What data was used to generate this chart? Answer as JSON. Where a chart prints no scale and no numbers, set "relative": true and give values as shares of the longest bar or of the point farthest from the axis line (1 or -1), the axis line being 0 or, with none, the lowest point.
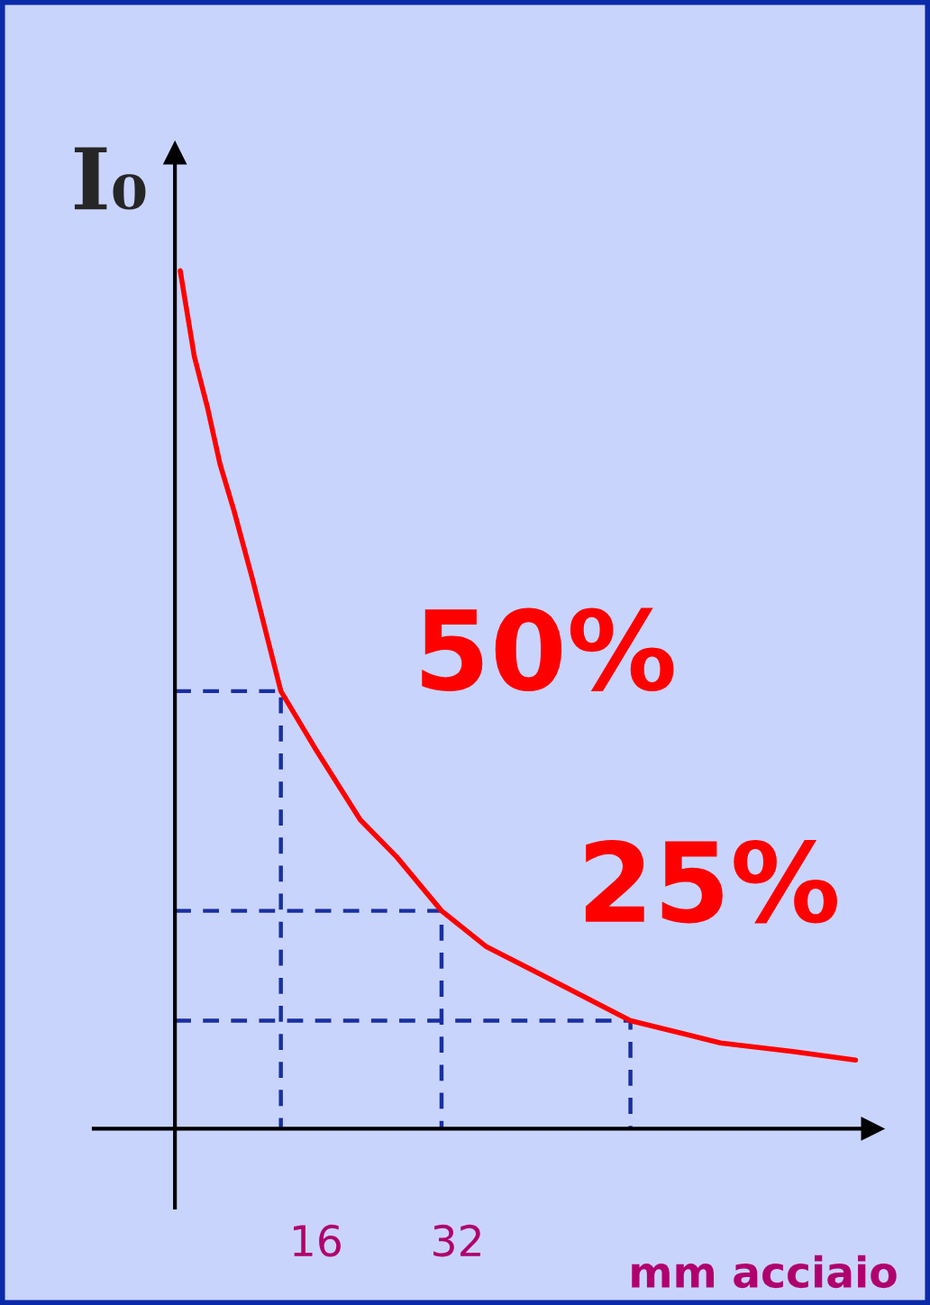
{
  "chart_data": {
    "type": "line",
    "relative": true,
    "xlabel": "mm acciaio",
    "ylabel": "I₀",
    "xlim": [
      -9.2,
      79
    ],
    "xticks": [
      16,
      32
    ],
    "grid": false,
    "legend": false,
    "marker": "none",
    "series": [
      {
        "color": "#ff0000",
        "line_style": "solid",
        "x": [
          0.6,
          2.2,
          3.7,
          5.1,
          6.7,
          8.8,
          12.0,
          15.9,
          21.0,
          25.1,
          30.2,
          35.3,
          41.4,
          46.5,
          51.6,
          61.8,
          70.0,
          77.1
        ],
        "values": [
          1.0,
          0.9,
          0.84,
          0.775,
          0.72,
          0.64,
          0.51,
          0.443,
          0.36,
          0.317,
          0.254,
          0.212,
          0.18,
          0.153,
          0.126,
          0.1,
          0.09,
          0.08
        ]
      },
      {
        "color": "#1a2fa0",
        "line_style": "dashed",
        "x": [
          0,
          12.0,
          12.0
        ],
        "values": [
          0.51,
          0.51,
          0
        ]
      },
      {
        "color": "#1a2fa0",
        "line_style": "dashed",
        "x": [
          0,
          30.2,
          30.2
        ],
        "values": [
          0.254,
          0.254,
          0
        ]
      },
      {
        "color": "#1a2fa0",
        "line_style": "dashed",
        "x": [
          0,
          51.6,
          51.6
        ],
        "values": [
          0.126,
          0.126,
          0
        ]
      }
    ],
    "annotations": [
      "50%",
      "25%"
    ]
  }
}
